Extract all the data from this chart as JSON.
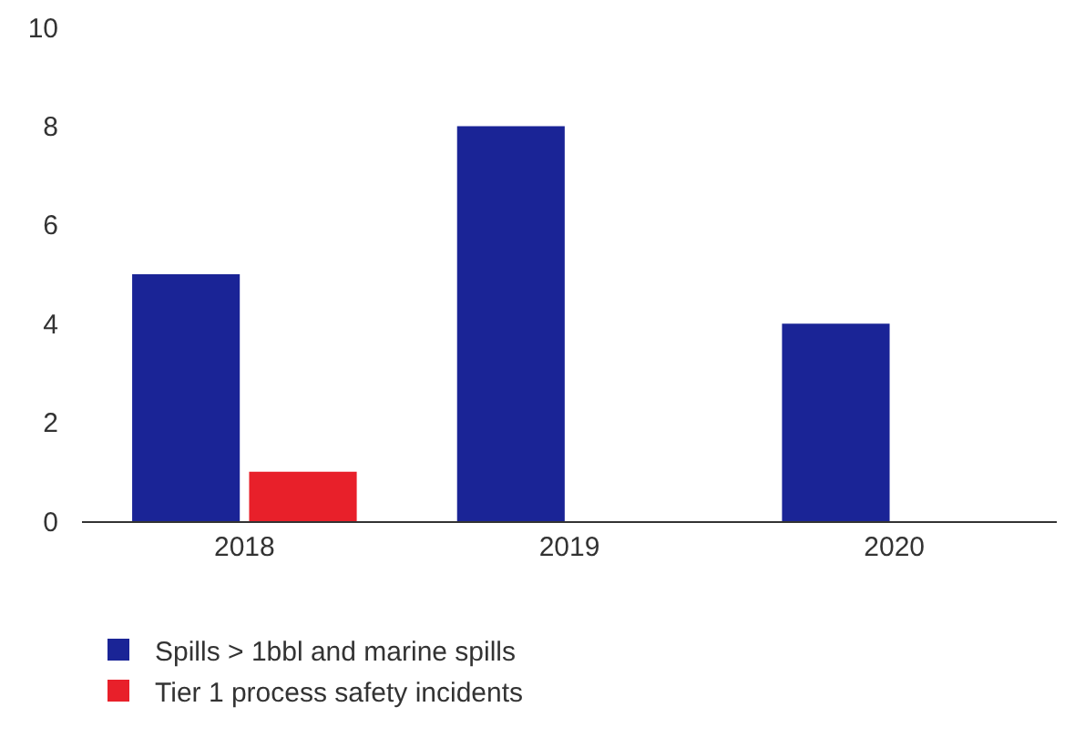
{
  "chart_data": {
    "type": "bar",
    "categories": [
      "2018",
      "2019",
      "2020"
    ],
    "series": [
      {
        "name": "Spills > 1bbl and marine spills",
        "color": "#1a2496",
        "values": [
          5,
          8,
          4
        ]
      },
      {
        "name": "Tier 1 process safety incidents",
        "color": "#e8202a",
        "values": [
          1,
          0,
          0
        ]
      }
    ],
    "ylim": [
      0,
      10
    ],
    "yticks": [
      0,
      2,
      4,
      6,
      8,
      10
    ],
    "grid": false,
    "legend": "bottom"
  }
}
